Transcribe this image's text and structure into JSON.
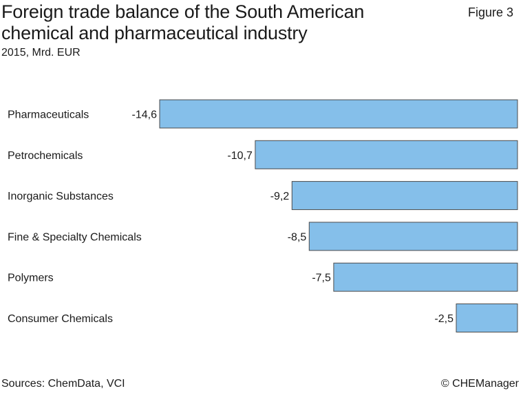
{
  "header": {
    "title": "Foreign trade balance of the South American chemical and pharmaceutical industry",
    "figure": "Figure 3",
    "subtitle": "2015, Mrd. EUR"
  },
  "footer": {
    "sources": "Sources: ChemData, VCI",
    "credit": "© CHEManager"
  },
  "colors": {
    "bar_fill": "#85BFEA",
    "bar_stroke": "#4a4a4a"
  },
  "chart_data": {
    "type": "bar",
    "orientation": "horizontal",
    "title": "Foreign trade balance of the South American chemical and pharmaceutical industry",
    "subtitle": "2015, Mrd. EUR",
    "xlabel": "",
    "ylabel": "",
    "categories": [
      "Pharmaceuticals",
      "Petrochemicals",
      "Inorganic Substances",
      "Fine & Specialty Chemicals",
      "Polymers",
      "Consumer Chemicals"
    ],
    "values": [
      -14.6,
      -10.7,
      -9.2,
      -8.5,
      -7.5,
      -2.5
    ],
    "value_labels": [
      "-14,6",
      "-10,7",
      "-9,2",
      "-8,5",
      "-7,5",
      "-2,5"
    ],
    "xlim": [
      -14.6,
      0
    ],
    "grid": false,
    "legend": "none"
  }
}
